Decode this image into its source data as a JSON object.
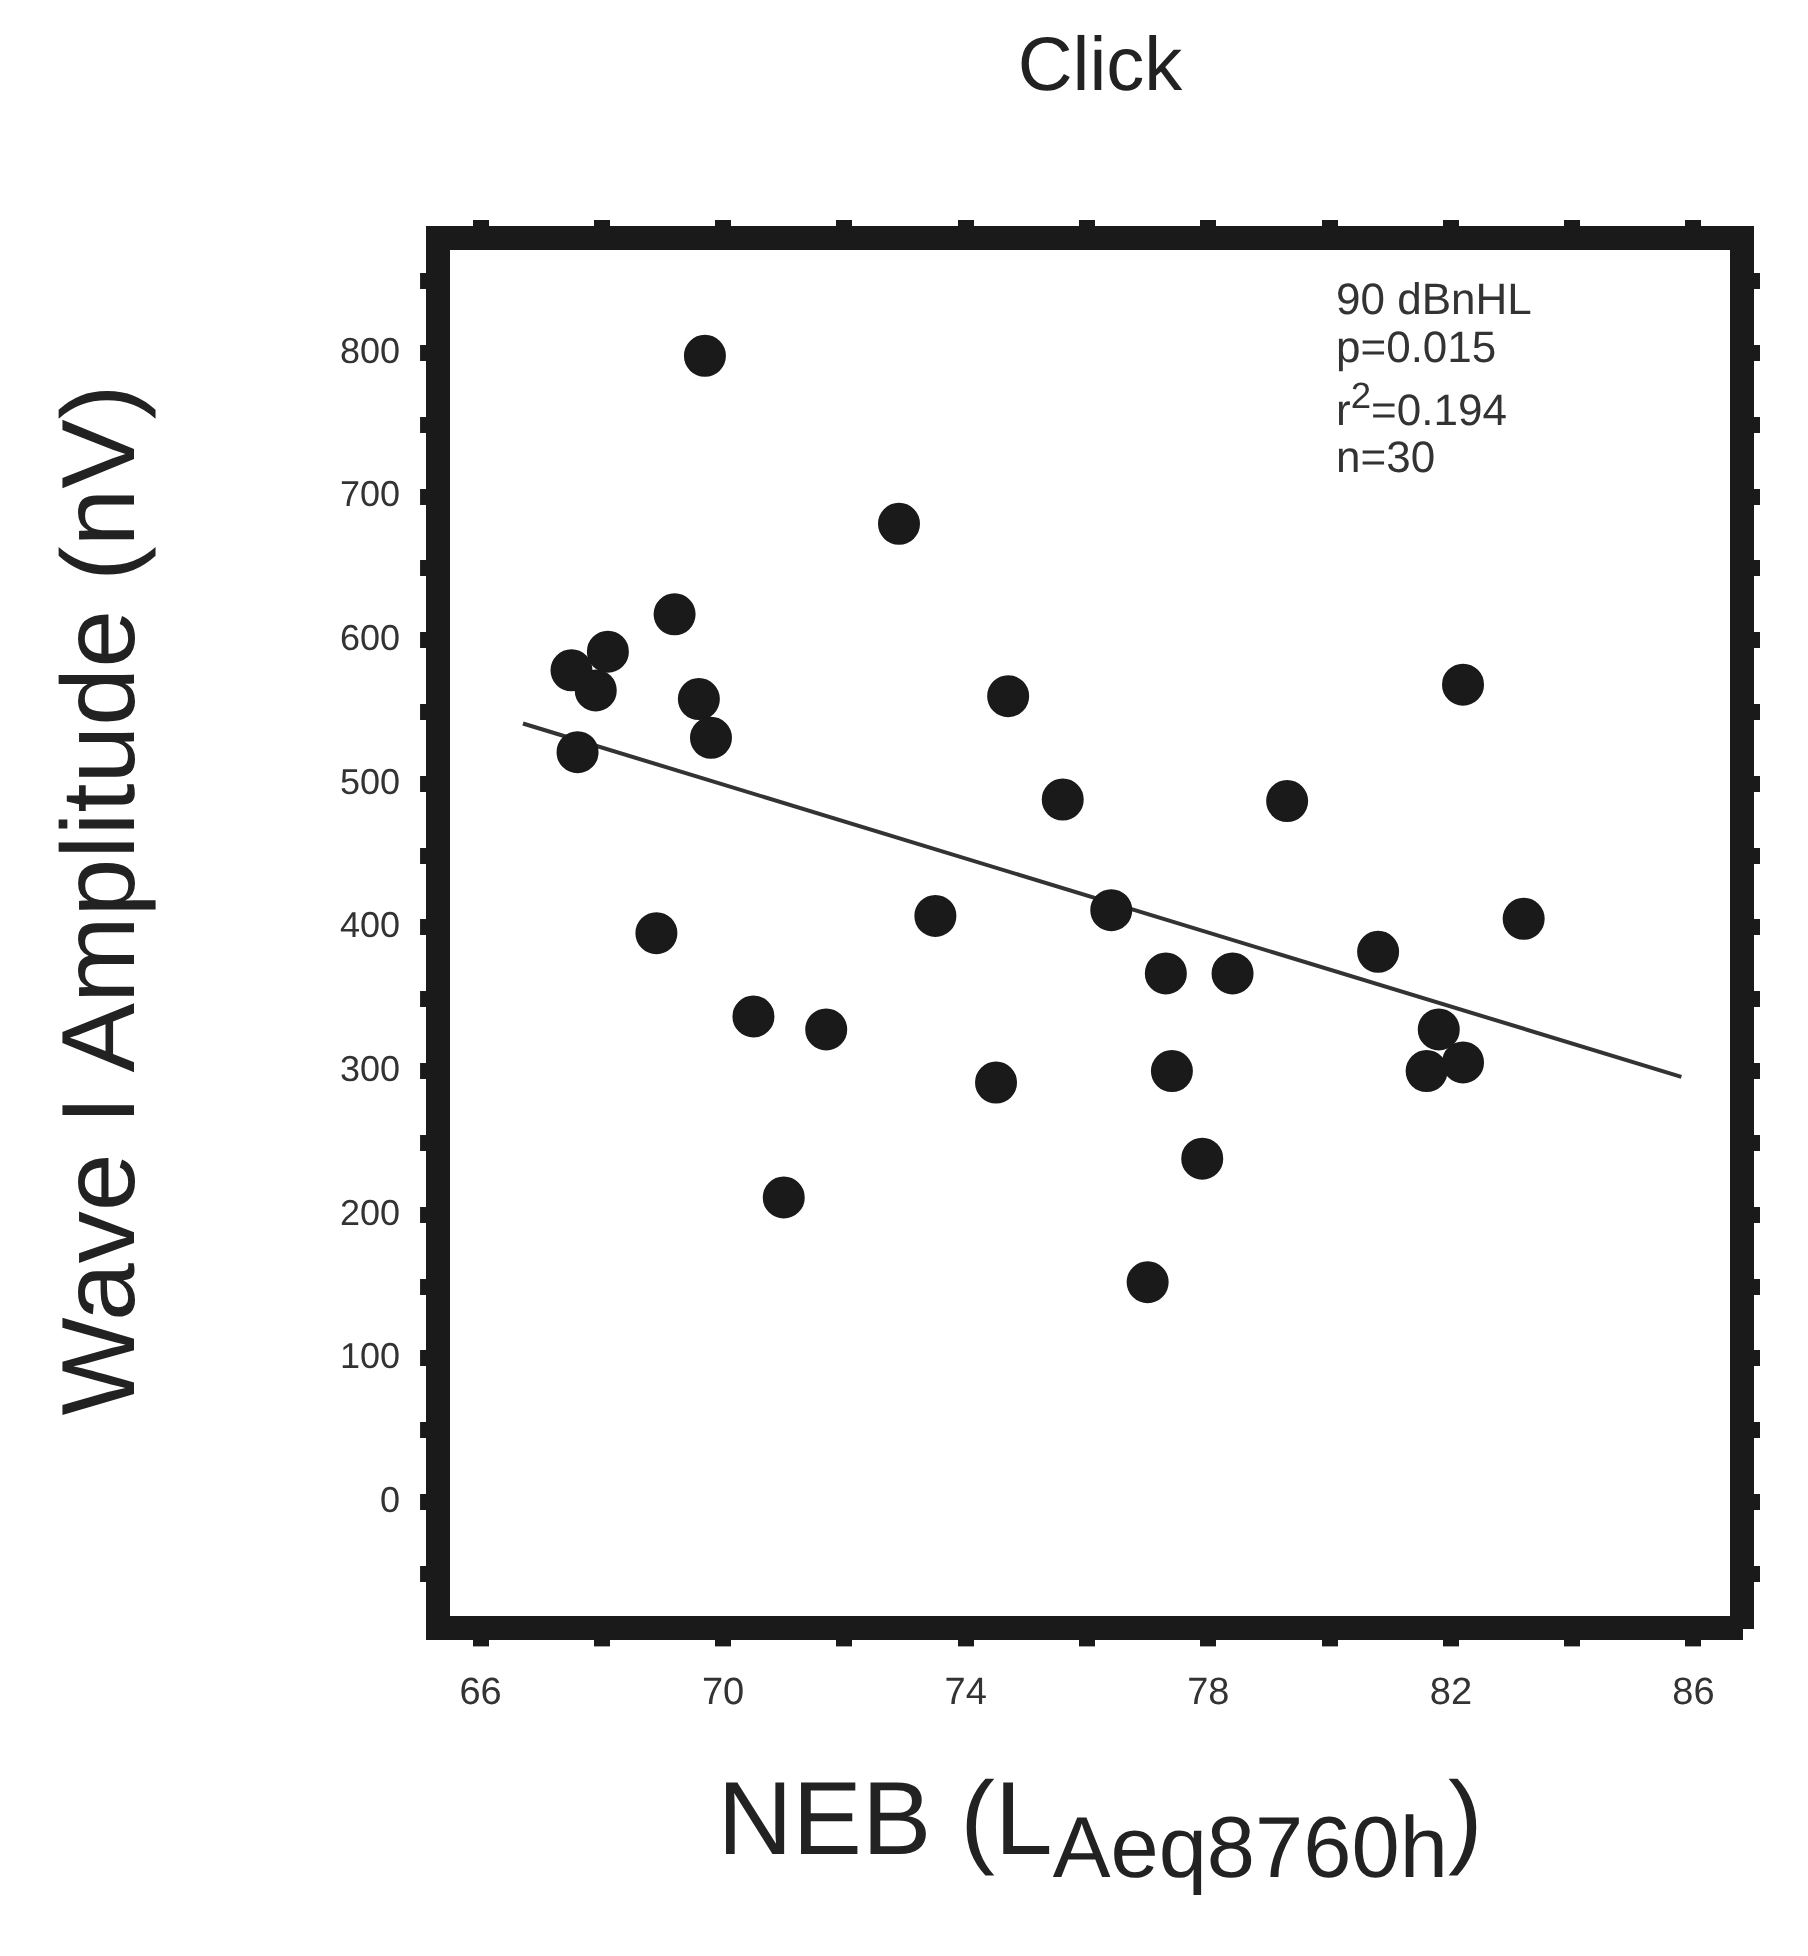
{
  "chart_data": {
    "type": "scatter",
    "title": "Click",
    "xlabel": "NEB (L$_{Aeq8760h}$)",
    "ylabel": "Wave I Amplitude (nV)",
    "xlim": [
      65.3,
      86.8
    ],
    "ylim": [
      -88,
      880
    ],
    "xticks": [
      66,
      {
        "value": 68,
        "label": null
      },
      70,
      {
        "value": 72,
        "label": null
      },
      74,
      {
        "value": 76,
        "label": null
      },
      78,
      {
        "value": 80,
        "label": null
      },
      82,
      {
        "value": 84,
        "label": null
      },
      86
    ],
    "yticks": [
      {
        "value": -50,
        "label": null
      },
      0,
      {
        "value": 50,
        "label": null
      },
      100,
      {
        "value": 150,
        "label": null
      },
      200,
      {
        "value": 250,
        "label": null
      },
      300,
      {
        "value": 350,
        "label": null
      },
      400,
      {
        "value": 450,
        "label": null
      },
      500,
      {
        "value": 550,
        "label": null
      },
      600,
      {
        "value": 650,
        "label": null
      },
      700,
      {
        "value": 750,
        "label": null
      },
      800,
      {
        "value": 850,
        "label": null
      }
    ],
    "grid": false,
    "legend": false,
    "marker": "circle",
    "annotations": [
      "90  dBnHL",
      "p=0.015",
      "r$^{2}$=0.194",
      "n=30"
    ],
    "series": [
      {
        "color": "#1a1a1a",
        "x": [
          67.5,
          67.9,
          68.1,
          67.6,
          69.2,
          69.7,
          69.6,
          69.8,
          68.9,
          70.5,
          71.0,
          71.7,
          72.9,
          73.5,
          74.5,
          74.7,
          75.6,
          76.4,
          77.0,
          77.3,
          77.4,
          77.9,
          78.4,
          79.3,
          80.8,
          81.6,
          81.8,
          82.2,
          82.2,
          83.2
        ],
        "values": [
          579,
          565,
          592,
          522,
          618,
          798,
          559,
          532,
          396,
          338,
          212,
          329,
          681,
          408,
          292,
          561,
          489,
          412,
          153,
          368,
          300,
          239,
          368,
          488,
          383,
          300,
          329,
          306,
          569,
          406
        ]
      },
      {
        "type": "line",
        "color": "#333333",
        "marker": "none",
        "x": [
          66.7,
          85.8
        ],
        "values": [
          542,
          296
        ]
      }
    ]
  }
}
